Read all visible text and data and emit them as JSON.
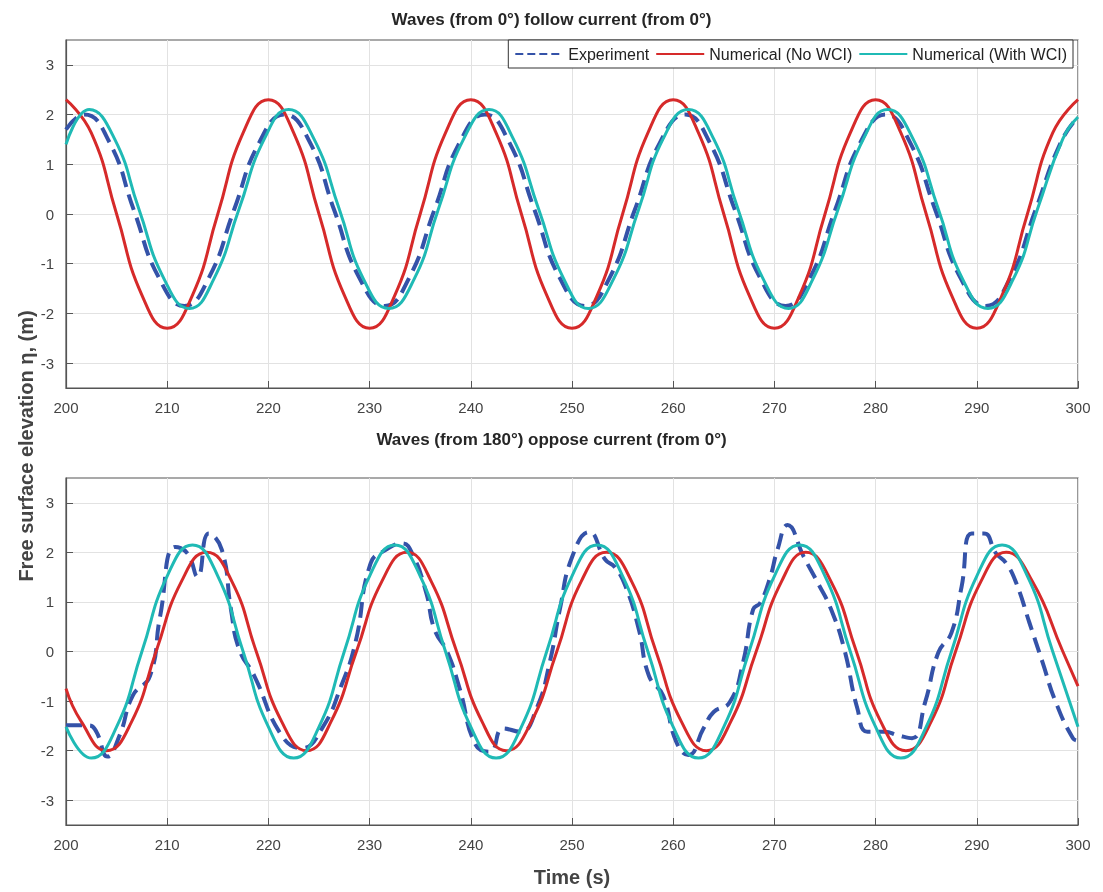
{
  "chart_data": [
    {
      "type": "line",
      "title": "Waves (from 0°) follow current (from 0°)",
      "ylabel": "Free surface elevation η, (m)",
      "xlim": [
        200,
        300
      ],
      "xticks": [
        200,
        210,
        220,
        230,
        240,
        250,
        260,
        270,
        280,
        290,
        300
      ],
      "ylim": [
        -3.5,
        3.5
      ],
      "yticks": [
        -3,
        -2,
        -1,
        0,
        1,
        2,
        3
      ],
      "grid": true,
      "legend": "top right",
      "marker": "none",
      "series": [
        {
          "name": "Experiment",
          "color": "#3452a8",
          "line_style": "dashed",
          "x": [
            200,
            201.8,
            204.3,
            206.7,
            209.2,
            211.7,
            214.1,
            216.6,
            219.1,
            221.6,
            224.1,
            226.5,
            229.0,
            231.5,
            233.9,
            236.4,
            238.9,
            241.4,
            243.8,
            246.3,
            248.8,
            251.3,
            253.7,
            256.2,
            258.7,
            261.2,
            263.6,
            266.1,
            268.6,
            271.1,
            273.5,
            276.0,
            278.5,
            281.0,
            283.4,
            285.9,
            288.4,
            290.9,
            293.3,
            295.8,
            298.3,
            300
          ],
          "values": [
            1.7,
            2.0,
            1.44,
            0.08,
            -1.29,
            -1.85,
            -1.29,
            0.08,
            1.44,
            2.0,
            1.44,
            0.08,
            -1.29,
            -1.85,
            -1.29,
            0.08,
            1.44,
            2.0,
            1.44,
            0.08,
            -1.29,
            -1.85,
            -1.29,
            0.08,
            1.44,
            2.0,
            1.44,
            0.08,
            -1.29,
            -1.85,
            -1.29,
            0.08,
            1.44,
            2.0,
            1.44,
            0.08,
            -1.29,
            -1.85,
            -1.29,
            0.08,
            1.44,
            1.95
          ]
        },
        {
          "name": "Numerical (No WCI)",
          "color": "#d62a2a",
          "line_style": "solid",
          "x": [
            200,
            202.5,
            205,
            207.5,
            210,
            212.5,
            215,
            217.5,
            220,
            222.5,
            225,
            227.5,
            230,
            232.5,
            235,
            237.5,
            240,
            242.5,
            245,
            247.5,
            250,
            252.5,
            255,
            257.5,
            260,
            262.5,
            265,
            267.5,
            270,
            272.5,
            275,
            277.5,
            280,
            282.5,
            285,
            287.5,
            290,
            292.5,
            295,
            297.5,
            300
          ],
          "values": [
            2.3,
            1.63,
            0,
            -1.63,
            -2.3,
            -1.63,
            0,
            1.63,
            2.3,
            1.63,
            0,
            -1.63,
            -2.3,
            -1.63,
            0,
            1.63,
            2.3,
            1.63,
            0,
            -1.63,
            -2.3,
            -1.63,
            0,
            1.63,
            2.3,
            1.63,
            0,
            -1.63,
            -2.3,
            -1.63,
            0,
            1.63,
            2.3,
            1.63,
            0,
            -1.63,
            -2.3,
            -1.63,
            0,
            1.63,
            2.3
          ]
        },
        {
          "name": "Numerical (With WCI)",
          "color": "#1fbab5",
          "line_style": "solid",
          "x": [
            200,
            202.3,
            204.8,
            207.2,
            209.7,
            212.2,
            214.6,
            217.1,
            219.6,
            222.0,
            224.5,
            227.0,
            229.4,
            231.9,
            234.4,
            236.8,
            239.3,
            241.8,
            244.2,
            246.7,
            249.2,
            251.6,
            254.1,
            256.6,
            259.0,
            261.5,
            264.0,
            266.4,
            268.9,
            271.4,
            273.8,
            276.3,
            278.8,
            281.2,
            283.7,
            286.2,
            288.6,
            291.1,
            293.6,
            296.0,
            298.5,
            300
          ],
          "values": [
            1.4,
            2.1,
            1.51,
            0.1,
            -1.31,
            -1.9,
            -1.31,
            0.1,
            1.51,
            2.1,
            1.51,
            0.1,
            -1.31,
            -1.9,
            -1.31,
            0.1,
            1.51,
            2.1,
            1.51,
            0.1,
            -1.31,
            -1.9,
            -1.31,
            0.1,
            1.51,
            2.1,
            1.51,
            0.1,
            -1.31,
            -1.9,
            -1.31,
            0.1,
            1.51,
            2.1,
            1.51,
            0.1,
            -1.31,
            -1.9,
            -1.31,
            0.1,
            1.51,
            1.95
          ]
        }
      ]
    },
    {
      "type": "line",
      "title": "Waves (from 180°) oppose current (from 0°)",
      "xlabel": "Time (s)",
      "xlim": [
        200,
        300
      ],
      "xticks": [
        200,
        210,
        220,
        230,
        240,
        250,
        260,
        270,
        280,
        290,
        300
      ],
      "ylim": [
        -3.5,
        3.5
      ],
      "yticks": [
        -3,
        -2,
        -1,
        0,
        1,
        2,
        3
      ],
      "grid": true,
      "marker": "none",
      "series": [
        {
          "color": "#3452a8",
          "line_style": "dashed",
          "x": [
            200,
            202.3,
            203,
            204.1,
            205.3,
            206.6,
            208.3,
            209.3,
            210.8,
            212,
            213,
            214.1,
            215.4,
            216.3,
            217.1,
            218.6,
            221.3,
            223.3,
            225.3,
            227.2,
            228.6,
            230.1,
            231.6,
            233.2,
            234.2,
            235.6,
            236.4,
            237.7,
            238.9,
            240.5,
            241.9,
            243.2,
            244.9,
            246.5,
            247.8,
            248.8,
            250,
            251.7,
            253.3,
            254.2,
            255.3,
            256.6,
            257.6,
            259,
            260.3,
            261.5,
            263,
            264,
            265.6,
            266.9,
            267.9,
            268.6,
            269.6,
            270.3,
            271.3,
            272.9,
            274.3,
            275.6,
            276.9,
            278.2,
            279.2,
            280.9,
            282.2,
            283.6,
            284.9,
            286.2,
            287.5,
            288.5,
            289.5,
            290.7,
            291.9,
            292.9,
            293.9,
            295.2,
            296.5,
            297.8,
            299.5,
            300
          ],
          "values": [
            -1.49,
            -1.49,
            -1.62,
            -2.12,
            -1.69,
            -0.89,
            -0.49,
            0.71,
            2.11,
            1.98,
            1.51,
            2.38,
            2.05,
            0.85,
            0.05,
            -0.49,
            -1.69,
            -1.95,
            -1.55,
            -0.69,
            0.18,
            1.78,
            2.05,
            2.18,
            1.98,
            1.18,
            0.45,
            -0.02,
            -0.75,
            -1.89,
            -2.02,
            -1.55,
            -1.62,
            -1.15,
            -0.22,
            0.85,
            1.9,
            2.41,
            1.85,
            1.71,
            1.31,
            0.45,
            -0.49,
            -0.89,
            -1.82,
            -2.09,
            -1.55,
            -1.22,
            -1.02,
            -0.22,
            0.85,
            0.98,
            1.51,
            2.05,
            2.55,
            1.91,
            1.38,
            0.85,
            0.05,
            -1.15,
            -1.62,
            -1.62,
            -1.69,
            -1.75,
            -1.02,
            -0.02,
            0.38,
            1.31,
            2.38,
            2.38,
            1.98,
            1.78,
            1.38,
            0.58,
            -0.22,
            -1.02,
            -1.75,
            -1.8
          ]
        },
        {
          "color": "#d62a2a",
          "line_style": "solid",
          "x": [
            200,
            201.5,
            204.0,
            206.5,
            208.9,
            211.4,
            213.9,
            216.4,
            218.8,
            221.3,
            223.8,
            226.2,
            228.7,
            231.2,
            233.7,
            236.1,
            238.6,
            241.1,
            243.5,
            246.0,
            248.5,
            250.9,
            253.4,
            255.9,
            258.3,
            260.8,
            263.3,
            265.7,
            268.2,
            270.7,
            273.1,
            275.6,
            278.1,
            280.5,
            283.0,
            285.5,
            287.9,
            290.4,
            292.9,
            295.5,
            298.5,
            300
          ],
          "values": [
            -0.75,
            -1.41,
            -2.0,
            -1.41,
            0,
            1.41,
            2.0,
            1.41,
            0,
            -1.41,
            -2.0,
            -1.41,
            0,
            1.41,
            2.0,
            1.41,
            0,
            -1.41,
            -2.0,
            -1.41,
            0,
            1.41,
            2.0,
            1.41,
            0,
            -1.41,
            -2.0,
            -1.41,
            0,
            1.41,
            2.0,
            1.41,
            0,
            -1.41,
            -2.0,
            -1.41,
            0,
            1.41,
            2.0,
            1.41,
            0,
            -0.7
          ]
        },
        {
          "color": "#1fbab5",
          "line_style": "solid",
          "x": [
            200,
            202.5,
            205,
            207.5,
            210,
            212.5,
            215,
            217.5,
            220,
            222.5,
            225,
            227.5,
            230,
            232.5,
            235,
            237.5,
            240,
            242.5,
            245,
            247.5,
            250,
            252.5,
            255,
            257.5,
            260,
            262.5,
            265,
            267.5,
            270,
            272.5,
            275,
            277.5,
            280,
            282.5,
            285,
            287.5,
            290,
            292.5,
            295,
            297.5,
            300
          ],
          "values": [
            -1.52,
            -2.15,
            -1.52,
            0,
            1.52,
            2.15,
            1.52,
            0,
            -1.52,
            -2.15,
            -1.52,
            0,
            1.52,
            2.15,
            1.52,
            0,
            -1.52,
            -2.15,
            -1.52,
            0,
            1.52,
            2.15,
            1.52,
            0,
            -1.52,
            -2.15,
            -1.52,
            0,
            1.52,
            2.15,
            1.52,
            0,
            -1.52,
            -2.15,
            -1.52,
            0,
            1.52,
            2.15,
            1.52,
            0,
            -1.52
          ]
        }
      ]
    }
  ]
}
